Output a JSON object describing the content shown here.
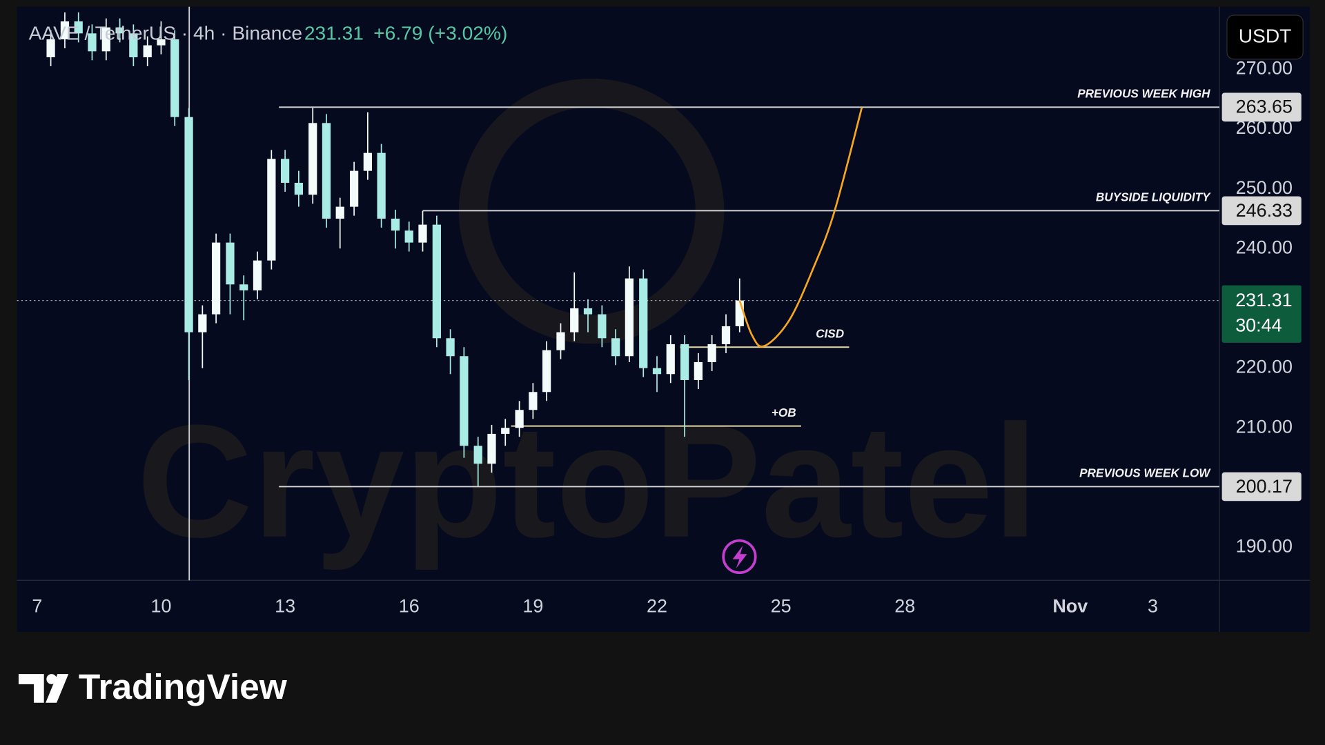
{
  "chart_data": {
    "type": "candlestick",
    "title": "AAVE / TetherUS · 4h · Binance",
    "last_price": 231.31,
    "change": "+6.79 (+3.02%)",
    "countdown": "30:44",
    "currency": "USDT",
    "brand": "TradingView",
    "watermark": "CryptoPatel",
    "up_color": "#f4fbfb",
    "down_color": "#a9ece6",
    "grid": false,
    "xlim": [
      6.51,
      35.61
    ],
    "xticks": [
      7,
      10,
      13,
      16,
      19,
      22,
      25,
      28,
      {
        "value": 32,
        "label": "Nov"
      },
      {
        "value": 34,
        "label": "3"
      }
    ],
    "ylim": [
      184.5,
      280.45
    ],
    "yticks": [
      {
        "value": 190,
        "label": "190.00"
      },
      {
        "value": 210,
        "label": "210.00"
      },
      {
        "value": 220,
        "label": "220.00"
      },
      {
        "value": 240,
        "label": "240.00"
      },
      {
        "value": 250,
        "label": "250.00"
      },
      {
        "value": 260,
        "label": "260.00"
      },
      {
        "value": 270,
        "label": "270.00"
      }
    ],
    "vertical_line": 10.68,
    "x": [
      7.33,
      7.67,
      8,
      8.33,
      8.67,
      9,
      9.33,
      9.67,
      10,
      10.33,
      10.67,
      11,
      11.33,
      11.67,
      12,
      12.33,
      12.67,
      13,
      13.33,
      13.67,
      14,
      14.33,
      14.67,
      15,
      15.33,
      15.67,
      16,
      16.33,
      16.67,
      17,
      17.33,
      17.67,
      18,
      18.33,
      18.67,
      19,
      19.33,
      19.67,
      20,
      20.33,
      20.67,
      21,
      21.33,
      21.67,
      22,
      22.33,
      22.67,
      23,
      23.33,
      23.67,
      24
    ],
    "open": [
      272,
      275,
      278,
      276,
      273,
      277,
      276,
      272,
      274,
      275,
      262,
      226,
      229,
      241,
      234,
      233,
      238,
      255,
      251,
      249,
      261,
      245,
      247,
      253,
      256,
      245,
      243,
      241,
      244,
      225,
      222,
      207,
      204,
      209,
      210,
      213,
      216,
      223,
      226,
      230,
      229,
      225,
      222,
      235,
      220,
      219,
      224,
      218,
      221,
      224,
      227
    ],
    "high": [
      276.5,
      279.5,
      279.5,
      277.5,
      278.5,
      278.5,
      277.5,
      275.5,
      278,
      276.5,
      263.5,
      230.5,
      242.5,
      242.5,
      235.5,
      239.5,
      256.5,
      256.5,
      253,
      263.5,
      262.5,
      248.5,
      254.5,
      262.8,
      257.5,
      246.5,
      244.5,
      246.3,
      245.5,
      226.5,
      223.5,
      208.5,
      210.5,
      211.5,
      214.5,
      217.5,
      224.5,
      227.5,
      236,
      231.5,
      230.5,
      226.5,
      237,
      236.5,
      222,
      225.5,
      225.5,
      222.5,
      225.5,
      229,
      235
    ],
    "low": [
      270.5,
      273.5,
      274.5,
      271.5,
      271.5,
      274.5,
      270.5,
      270.5,
      272.5,
      260.5,
      218,
      220,
      227.5,
      229,
      228,
      231.5,
      236.5,
      249.5,
      247,
      247.5,
      243.5,
      240,
      245.5,
      251.5,
      243.5,
      240,
      239.5,
      239.5,
      223.5,
      219,
      205,
      200.2,
      202.5,
      207,
      208.5,
      211.5,
      214.5,
      221.5,
      224.5,
      226,
      223.5,
      220.5,
      221,
      218.5,
      216,
      217.5,
      208.5,
      216.5,
      219.5,
      222.5,
      226
    ],
    "close": [
      275,
      278,
      276,
      273,
      277,
      276,
      272,
      274,
      275,
      262,
      226,
      229,
      241,
      234,
      233,
      238,
      255,
      251,
      249,
      261,
      245,
      247,
      253,
      256,
      245,
      243,
      241,
      244,
      225,
      222,
      207,
      204,
      209,
      210,
      213,
      216,
      223,
      226,
      230,
      229,
      225,
      222,
      235,
      220,
      219,
      224,
      218,
      221,
      224,
      227,
      231.31
    ],
    "levels": [
      {
        "name": "PREVIOUS WEEK HIGH",
        "value": 263.65,
        "x_start": 12.85,
        "color": "#d6d6d6"
      },
      {
        "name": "BUYSIDE LIQUIDITY",
        "value": 246.33,
        "x_start": 16.33,
        "color": "#d6d6d6"
      },
      {
        "name": "PREVIOUS WEEK LOW",
        "value": 200.17,
        "x_start": 12.85,
        "color": "#d6d6d6"
      },
      {
        "name": "CISD",
        "value": 223.5,
        "x_start": 22.56,
        "x_end": 26.65,
        "color": "#e9dca8"
      },
      {
        "name": "+OB",
        "value": 210.3,
        "x_start": 18.47,
        "x_end": 25.49,
        "color": "#e9dca8"
      }
    ],
    "projection": {
      "color": "#f5a623",
      "x": [
        24.0,
        24.3,
        24.6,
        25.2,
        25.8,
        26.3,
        26.96
      ],
      "y": [
        231.31,
        225.5,
        223.7,
        228,
        237,
        246.33,
        263.65
      ]
    }
  }
}
